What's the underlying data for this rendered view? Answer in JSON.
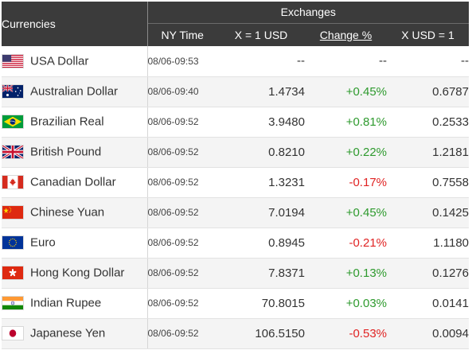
{
  "header": {
    "currencies": "Currencies",
    "exchanges": "Exchanges",
    "ny_time": "NY Time",
    "x_per_usd": "X = 1 USD",
    "change_pct": "Change %",
    "usd_per_x": "X USD = 1"
  },
  "rows": [
    {
      "name": "USA Dollar",
      "flag": "us-flag-icon",
      "time": "08/06-09:53",
      "x": "--",
      "change": "--",
      "usd": "--",
      "dir": "none"
    },
    {
      "name": "Australian Dollar",
      "flag": "australia-flag-icon",
      "time": "08/06-09:40",
      "x": "1.4734",
      "change": "+0.45%",
      "usd": "0.6787",
      "dir": "up"
    },
    {
      "name": "Brazilian Real",
      "flag": "brazil-flag-icon",
      "time": "08/06-09:52",
      "x": "3.9480",
      "change": "+0.81%",
      "usd": "0.2533",
      "dir": "up"
    },
    {
      "name": "British Pound",
      "flag": "uk-flag-icon",
      "time": "08/06-09:52",
      "x": "0.8210",
      "change": "+0.22%",
      "usd": "1.2181",
      "dir": "up"
    },
    {
      "name": "Canadian Dollar",
      "flag": "canada-flag-icon",
      "time": "08/06-09:52",
      "x": "1.3231",
      "change": "-0.17%",
      "usd": "0.7558",
      "dir": "down"
    },
    {
      "name": "Chinese Yuan",
      "flag": "china-flag-icon",
      "time": "08/06-09:52",
      "x": "7.0194",
      "change": "+0.45%",
      "usd": "0.1425",
      "dir": "up"
    },
    {
      "name": "Euro",
      "flag": "eu-flag-icon",
      "time": "08/06-09:52",
      "x": "0.8945",
      "change": "-0.21%",
      "usd": "1.1180",
      "dir": "down"
    },
    {
      "name": "Hong Kong Dollar",
      "flag": "hong-kong-flag-icon",
      "time": "08/06-09:52",
      "x": "7.8371",
      "change": "+0.13%",
      "usd": "0.1276",
      "dir": "up"
    },
    {
      "name": "Indian Rupee",
      "flag": "india-flag-icon",
      "time": "08/06-09:52",
      "x": "70.8015",
      "change": "+0.03%",
      "usd": "0.0141",
      "dir": "up"
    },
    {
      "name": "Japanese Yen",
      "flag": "japan-flag-icon",
      "time": "08/06-09:52",
      "x": "106.5150",
      "change": "-0.53%",
      "usd": "0.0094",
      "dir": "down"
    }
  ],
  "colors": {
    "header_bg": "#3b3b3b",
    "positive": "#2e9a2e",
    "negative": "#e02323"
  }
}
